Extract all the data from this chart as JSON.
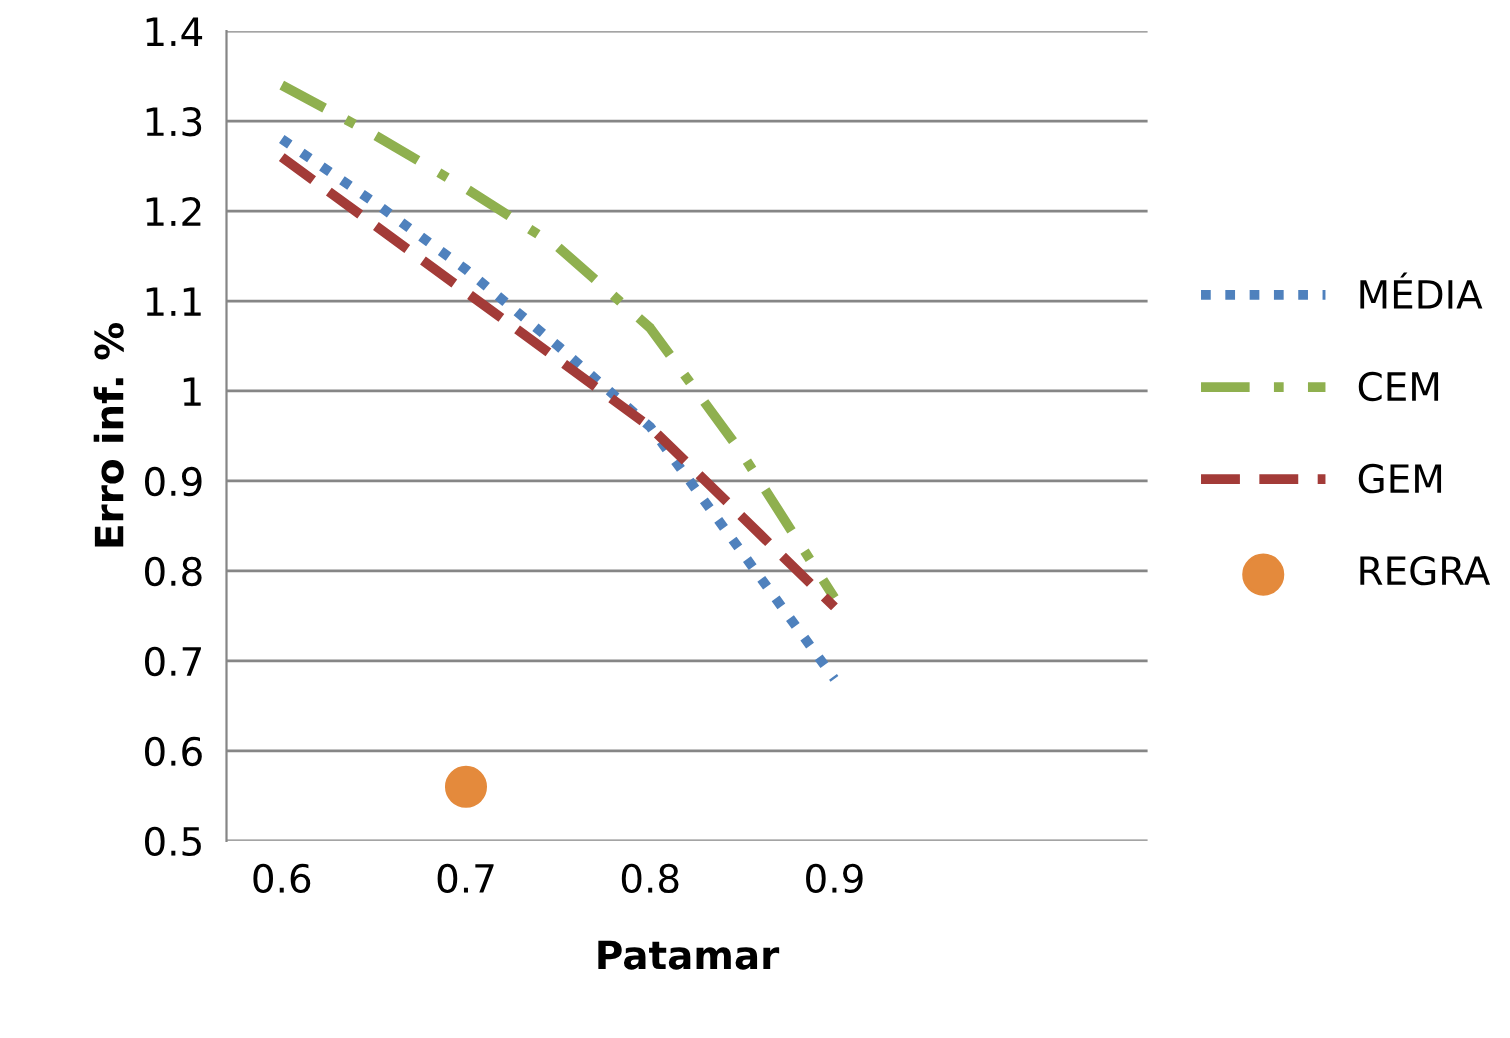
{
  "chart_data": {
    "type": "line",
    "xlabel": "Patamar",
    "ylabel": "Erro inf. %",
    "xlim": [
      0.57,
      1.07
    ],
    "xticks": [
      0.6,
      0.7,
      0.8,
      0.9
    ],
    "ylim": [
      0.5,
      1.4
    ],
    "yticks": [
      0.5,
      0.6,
      0.7,
      0.8,
      0.9,
      1,
      1.1,
      1.2,
      1.3,
      1.4
    ],
    "grid": "y",
    "legend": "right",
    "series": [
      {
        "name": "MÉDIA",
        "color": "#4f81bd",
        "line_style": "dotted",
        "x": [
          0.6,
          0.65,
          0.7,
          0.75,
          0.8,
          0.85,
          0.9
        ],
        "values": [
          1.28,
          1.21,
          1.135,
          1.05,
          0.96,
          0.82,
          0.68
        ]
      },
      {
        "name": "CEM",
        "color": "#8fb04f",
        "line_style": "dashdot",
        "x": [
          0.6,
          0.65,
          0.7,
          0.75,
          0.8,
          0.85,
          0.9
        ],
        "values": [
          1.34,
          1.285,
          1.225,
          1.16,
          1.07,
          0.93,
          0.77
        ]
      },
      {
        "name": "GEM",
        "color": "#a33b38",
        "line_style": "dashed",
        "x": [
          0.6,
          0.65,
          0.7,
          0.75,
          0.8,
          0.85,
          0.9
        ],
        "values": [
          1.26,
          1.185,
          1.11,
          1.035,
          0.96,
          0.86,
          0.76
        ]
      },
      {
        "name": "REGRA",
        "type": "scatter",
        "marker": "circle",
        "color": "#e48a3c",
        "x": [
          0.7
        ],
        "values": [
          0.56
        ]
      }
    ]
  }
}
